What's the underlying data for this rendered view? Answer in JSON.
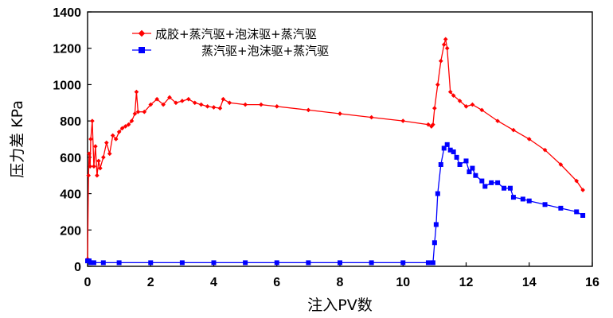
{
  "chart_data": {
    "type": "line",
    "xlabel": "注入PV数",
    "ylabel": "压力差 KPa",
    "xlim": [
      0,
      16
    ],
    "ylim": [
      0,
      1400
    ],
    "xticks": [
      0,
      2,
      4,
      6,
      8,
      10,
      12,
      14,
      16
    ],
    "yticks": [
      0,
      200,
      400,
      600,
      800,
      1000,
      1200,
      1400
    ],
    "grid": false,
    "legend_position": "top-left",
    "series": [
      {
        "name": "成胶+蒸汽驱+泡沫驱+蒸汽驱",
        "color": "#ff0000",
        "marker": "diamond",
        "x": [
          0,
          0.03,
          0.05,
          0.08,
          0.1,
          0.15,
          0.2,
          0.25,
          0.3,
          0.35,
          0.4,
          0.5,
          0.6,
          0.7,
          0.8,
          0.9,
          1.0,
          1.1,
          1.2,
          1.3,
          1.4,
          1.5,
          1.55,
          1.6,
          1.8,
          2.0,
          2.2,
          2.4,
          2.6,
          2.8,
          3.0,
          3.2,
          3.4,
          3.6,
          3.8,
          4.0,
          4.2,
          4.3,
          4.5,
          5.0,
          5.5,
          6.0,
          7.0,
          8.0,
          9.0,
          10.0,
          10.8,
          10.9,
          10.95,
          11.0,
          11.1,
          11.2,
          11.3,
          11.35,
          11.4,
          11.5,
          11.6,
          11.8,
          12.0,
          12.2,
          12.5,
          13.0,
          13.5,
          14.0,
          14.5,
          15.0,
          15.5,
          15.7
        ],
        "y": [
          40,
          500,
          620,
          550,
          700,
          800,
          550,
          660,
          500,
          580,
          540,
          600,
          680,
          620,
          720,
          700,
          740,
          760,
          770,
          780,
          800,
          840,
          960,
          850,
          850,
          890,
          920,
          890,
          930,
          900,
          910,
          920,
          900,
          890,
          880,
          875,
          870,
          920,
          900,
          890,
          890,
          880,
          860,
          840,
          820,
          800,
          780,
          770,
          780,
          870,
          1000,
          1130,
          1220,
          1250,
          1200,
          960,
          940,
          910,
          880,
          890,
          860,
          800,
          750,
          700,
          640,
          560,
          470,
          420
        ]
      },
      {
        "name": "蒸汽驱+泡沫驱+蒸汽驱",
        "color": "#0000ff",
        "marker": "square",
        "x": [
          0,
          0.05,
          0.1,
          0.2,
          0.5,
          1,
          2,
          3,
          4,
          5,
          6,
          7,
          8,
          9,
          10,
          10.8,
          10.95,
          11.0,
          11.05,
          11.1,
          11.2,
          11.3,
          11.4,
          11.5,
          11.6,
          11.7,
          11.8,
          12.0,
          12.1,
          12.2,
          12.3,
          12.5,
          12.6,
          12.8,
          13.0,
          13.2,
          13.4,
          13.5,
          13.8,
          14.0,
          14.5,
          15.0,
          15.5,
          15.7
        ],
        "y": [
          30,
          30,
          20,
          20,
          20,
          20,
          20,
          20,
          20,
          20,
          20,
          20,
          20,
          20,
          20,
          20,
          20,
          130,
          230,
          400,
          560,
          650,
          670,
          640,
          630,
          600,
          560,
          580,
          520,
          540,
          500,
          470,
          440,
          460,
          460,
          430,
          430,
          380,
          370,
          360,
          340,
          320,
          300,
          280
        ]
      }
    ]
  }
}
